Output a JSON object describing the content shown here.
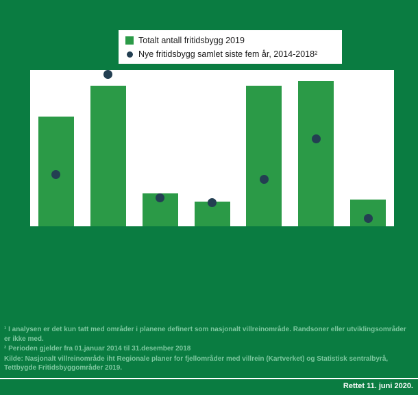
{
  "colors": {
    "background": "#0a7c41",
    "plot_bg": "#ffffff",
    "bar": "#2b9a47",
    "dot": "#233f52",
    "footnote_text": "#7cc79e",
    "revision_text": "#ffffff",
    "legend_text": "#1a1a1a"
  },
  "legend": {
    "items": [
      {
        "label": "Totalt antall fritidsbygg 2019",
        "marker": "square",
        "color": "#2b9a47"
      },
      {
        "label": "Nye fritidsbygg samlet siste fem år, 2014-2018²",
        "marker": "circle",
        "color": "#233f52"
      }
    ]
  },
  "chart_data": {
    "type": "bar",
    "title": "",
    "xlabel": "",
    "ylabel": "",
    "categories": [
      "",
      "",
      "",
      "",
      "",
      "",
      ""
    ],
    "series": [
      {
        "name": "Totalt antall fritidsbygg 2019",
        "type": "bar",
        "values": [
          70,
          90,
          21,
          16,
          90,
          93,
          17
        ]
      },
      {
        "name": "Nye fritidsbygg samlet siste fem år, 2014-2018²",
        "type": "scatter",
        "values": [
          33,
          97,
          18,
          15,
          30,
          56,
          5
        ]
      }
    ],
    "ylim": [
      0,
      100
    ],
    "units": "relative (percent of plot height); no axis tick labels visible in image",
    "grid": false,
    "legend_position": "top-center"
  },
  "footnotes": [
    "¹ I analysen er det kun tatt med områder i planene definert som nasjonalt villreinområde. Randsoner eller utviklingsområder er ikke med.",
    "² Perioden gjelder fra 01.januar 2014 til 31.desember 2018",
    "Kilde: Nasjonalt villreinområde iht Regionale planer for fjellområder med villrein (Kartverket) og Statistisk sentralbyrå, Tettbygde Fritidsbyggområder 2019."
  ],
  "footer": {
    "revision_note": "Rettet 11. juni 2020."
  }
}
